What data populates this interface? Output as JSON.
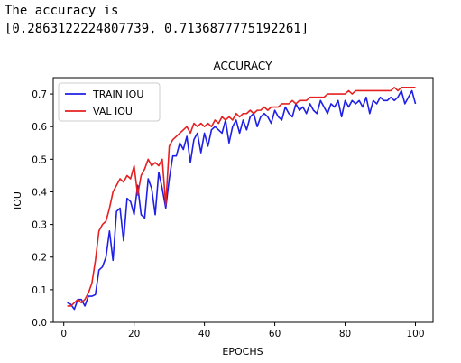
{
  "output": {
    "line1": "The accuracy is",
    "line2": "[0.2863122224807739, 0.7136877775192261]"
  },
  "chart_data": {
    "type": "line",
    "title": "ACCURACY",
    "xlabel": "EPOCHS",
    "ylabel": "IOU",
    "xlim": [
      -3,
      105
    ],
    "ylim": [
      0,
      0.75
    ],
    "xticks": [
      0,
      20,
      40,
      60,
      80,
      100
    ],
    "yticks": [
      0.0,
      0.1,
      0.2,
      0.3,
      0.4,
      0.5,
      0.6,
      0.7
    ],
    "legend_position": "top-left",
    "grid": false,
    "series": [
      {
        "name": "TRAIN IOU",
        "color": "#1f1fe6",
        "x": [
          1,
          2,
          3,
          4,
          5,
          6,
          7,
          8,
          9,
          10,
          11,
          12,
          13,
          14,
          15,
          16,
          17,
          18,
          19,
          20,
          21,
          22,
          23,
          24,
          25,
          26,
          27,
          28,
          29,
          30,
          31,
          32,
          33,
          34,
          35,
          36,
          37,
          38,
          39,
          40,
          41,
          42,
          43,
          44,
          45,
          46,
          47,
          48,
          49,
          50,
          51,
          52,
          53,
          54,
          55,
          56,
          57,
          58,
          59,
          60,
          61,
          62,
          63,
          64,
          65,
          66,
          67,
          68,
          69,
          70,
          71,
          72,
          73,
          74,
          75,
          76,
          77,
          78,
          79,
          80,
          81,
          82,
          83,
          84,
          85,
          86,
          87,
          88,
          89,
          90,
          91,
          92,
          93,
          94,
          95,
          96,
          97,
          98,
          99,
          100
        ],
        "y": [
          0.06,
          0.055,
          0.04,
          0.07,
          0.07,
          0.05,
          0.08,
          0.08,
          0.085,
          0.16,
          0.17,
          0.2,
          0.28,
          0.19,
          0.34,
          0.35,
          0.25,
          0.38,
          0.37,
          0.33,
          0.42,
          0.33,
          0.32,
          0.44,
          0.41,
          0.33,
          0.46,
          0.41,
          0.35,
          0.44,
          0.51,
          0.51,
          0.55,
          0.53,
          0.57,
          0.49,
          0.56,
          0.58,
          0.52,
          0.58,
          0.54,
          0.59,
          0.6,
          0.59,
          0.58,
          0.62,
          0.55,
          0.6,
          0.62,
          0.58,
          0.62,
          0.59,
          0.63,
          0.64,
          0.6,
          0.63,
          0.64,
          0.63,
          0.61,
          0.65,
          0.63,
          0.62,
          0.66,
          0.64,
          0.63,
          0.67,
          0.65,
          0.66,
          0.64,
          0.67,
          0.65,
          0.64,
          0.68,
          0.66,
          0.64,
          0.67,
          0.66,
          0.68,
          0.63,
          0.68,
          0.66,
          0.68,
          0.67,
          0.68,
          0.66,
          0.69,
          0.64,
          0.68,
          0.67,
          0.69,
          0.68,
          0.68,
          0.69,
          0.68,
          0.69,
          0.71,
          0.67,
          0.69,
          0.71,
          0.67
        ]
      },
      {
        "name": "VAL IOU",
        "color": "#e62020",
        "x": [
          1,
          2,
          3,
          4,
          5,
          6,
          7,
          8,
          9,
          10,
          11,
          12,
          13,
          14,
          15,
          16,
          17,
          18,
          19,
          20,
          21,
          22,
          23,
          24,
          25,
          26,
          27,
          28,
          29,
          30,
          31,
          32,
          33,
          34,
          35,
          36,
          37,
          38,
          39,
          40,
          41,
          42,
          43,
          44,
          45,
          46,
          47,
          48,
          49,
          50,
          51,
          52,
          53,
          54,
          55,
          56,
          57,
          58,
          59,
          60,
          61,
          62,
          63,
          64,
          65,
          66,
          67,
          68,
          69,
          70,
          71,
          72,
          73,
          74,
          75,
          76,
          77,
          78,
          79,
          80,
          81,
          82,
          83,
          84,
          85,
          86,
          87,
          88,
          89,
          90,
          91,
          92,
          93,
          94,
          95,
          96,
          97,
          98,
          99,
          100
        ],
        "y": [
          0.05,
          0.05,
          0.06,
          0.07,
          0.06,
          0.07,
          0.09,
          0.12,
          0.19,
          0.28,
          0.3,
          0.31,
          0.35,
          0.4,
          0.42,
          0.44,
          0.43,
          0.45,
          0.44,
          0.48,
          0.39,
          0.45,
          0.47,
          0.5,
          0.48,
          0.49,
          0.48,
          0.5,
          0.36,
          0.54,
          0.56,
          0.57,
          0.58,
          0.59,
          0.6,
          0.58,
          0.61,
          0.6,
          0.61,
          0.6,
          0.61,
          0.6,
          0.62,
          0.61,
          0.63,
          0.62,
          0.63,
          0.62,
          0.64,
          0.63,
          0.64,
          0.64,
          0.65,
          0.64,
          0.65,
          0.65,
          0.66,
          0.65,
          0.66,
          0.66,
          0.66,
          0.67,
          0.67,
          0.67,
          0.68,
          0.67,
          0.68,
          0.68,
          0.68,
          0.69,
          0.69,
          0.69,
          0.69,
          0.69,
          0.7,
          0.7,
          0.7,
          0.7,
          0.7,
          0.7,
          0.71,
          0.7,
          0.71,
          0.71,
          0.71,
          0.71,
          0.71,
          0.71,
          0.71,
          0.71,
          0.71,
          0.71,
          0.71,
          0.72,
          0.71,
          0.72,
          0.72,
          0.72,
          0.72,
          0.72
        ]
      }
    ]
  }
}
